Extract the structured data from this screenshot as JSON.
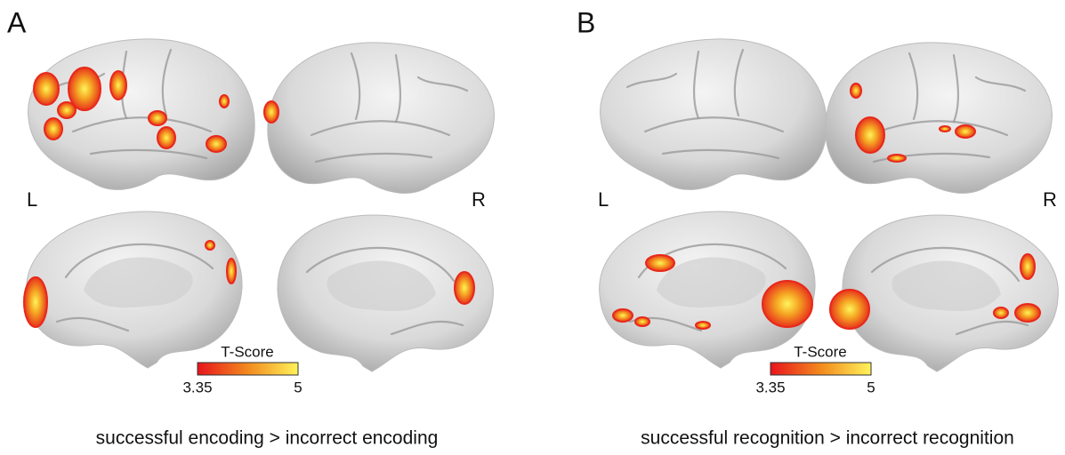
{
  "panels": [
    {
      "label": "A",
      "left_label": "L",
      "right_label": "R",
      "colorbar": {
        "title": "T-Score",
        "ticks": [
          3.35,
          5
        ]
      },
      "caption": "successful encoding > incorrect encoding"
    },
    {
      "label": "B",
      "left_label": "L",
      "right_label": "R",
      "colorbar": {
        "title": "T-Score",
        "ticks": [
          3.35,
          5
        ]
      },
      "caption": "successful recognition > incorrect recognition"
    }
  ]
}
